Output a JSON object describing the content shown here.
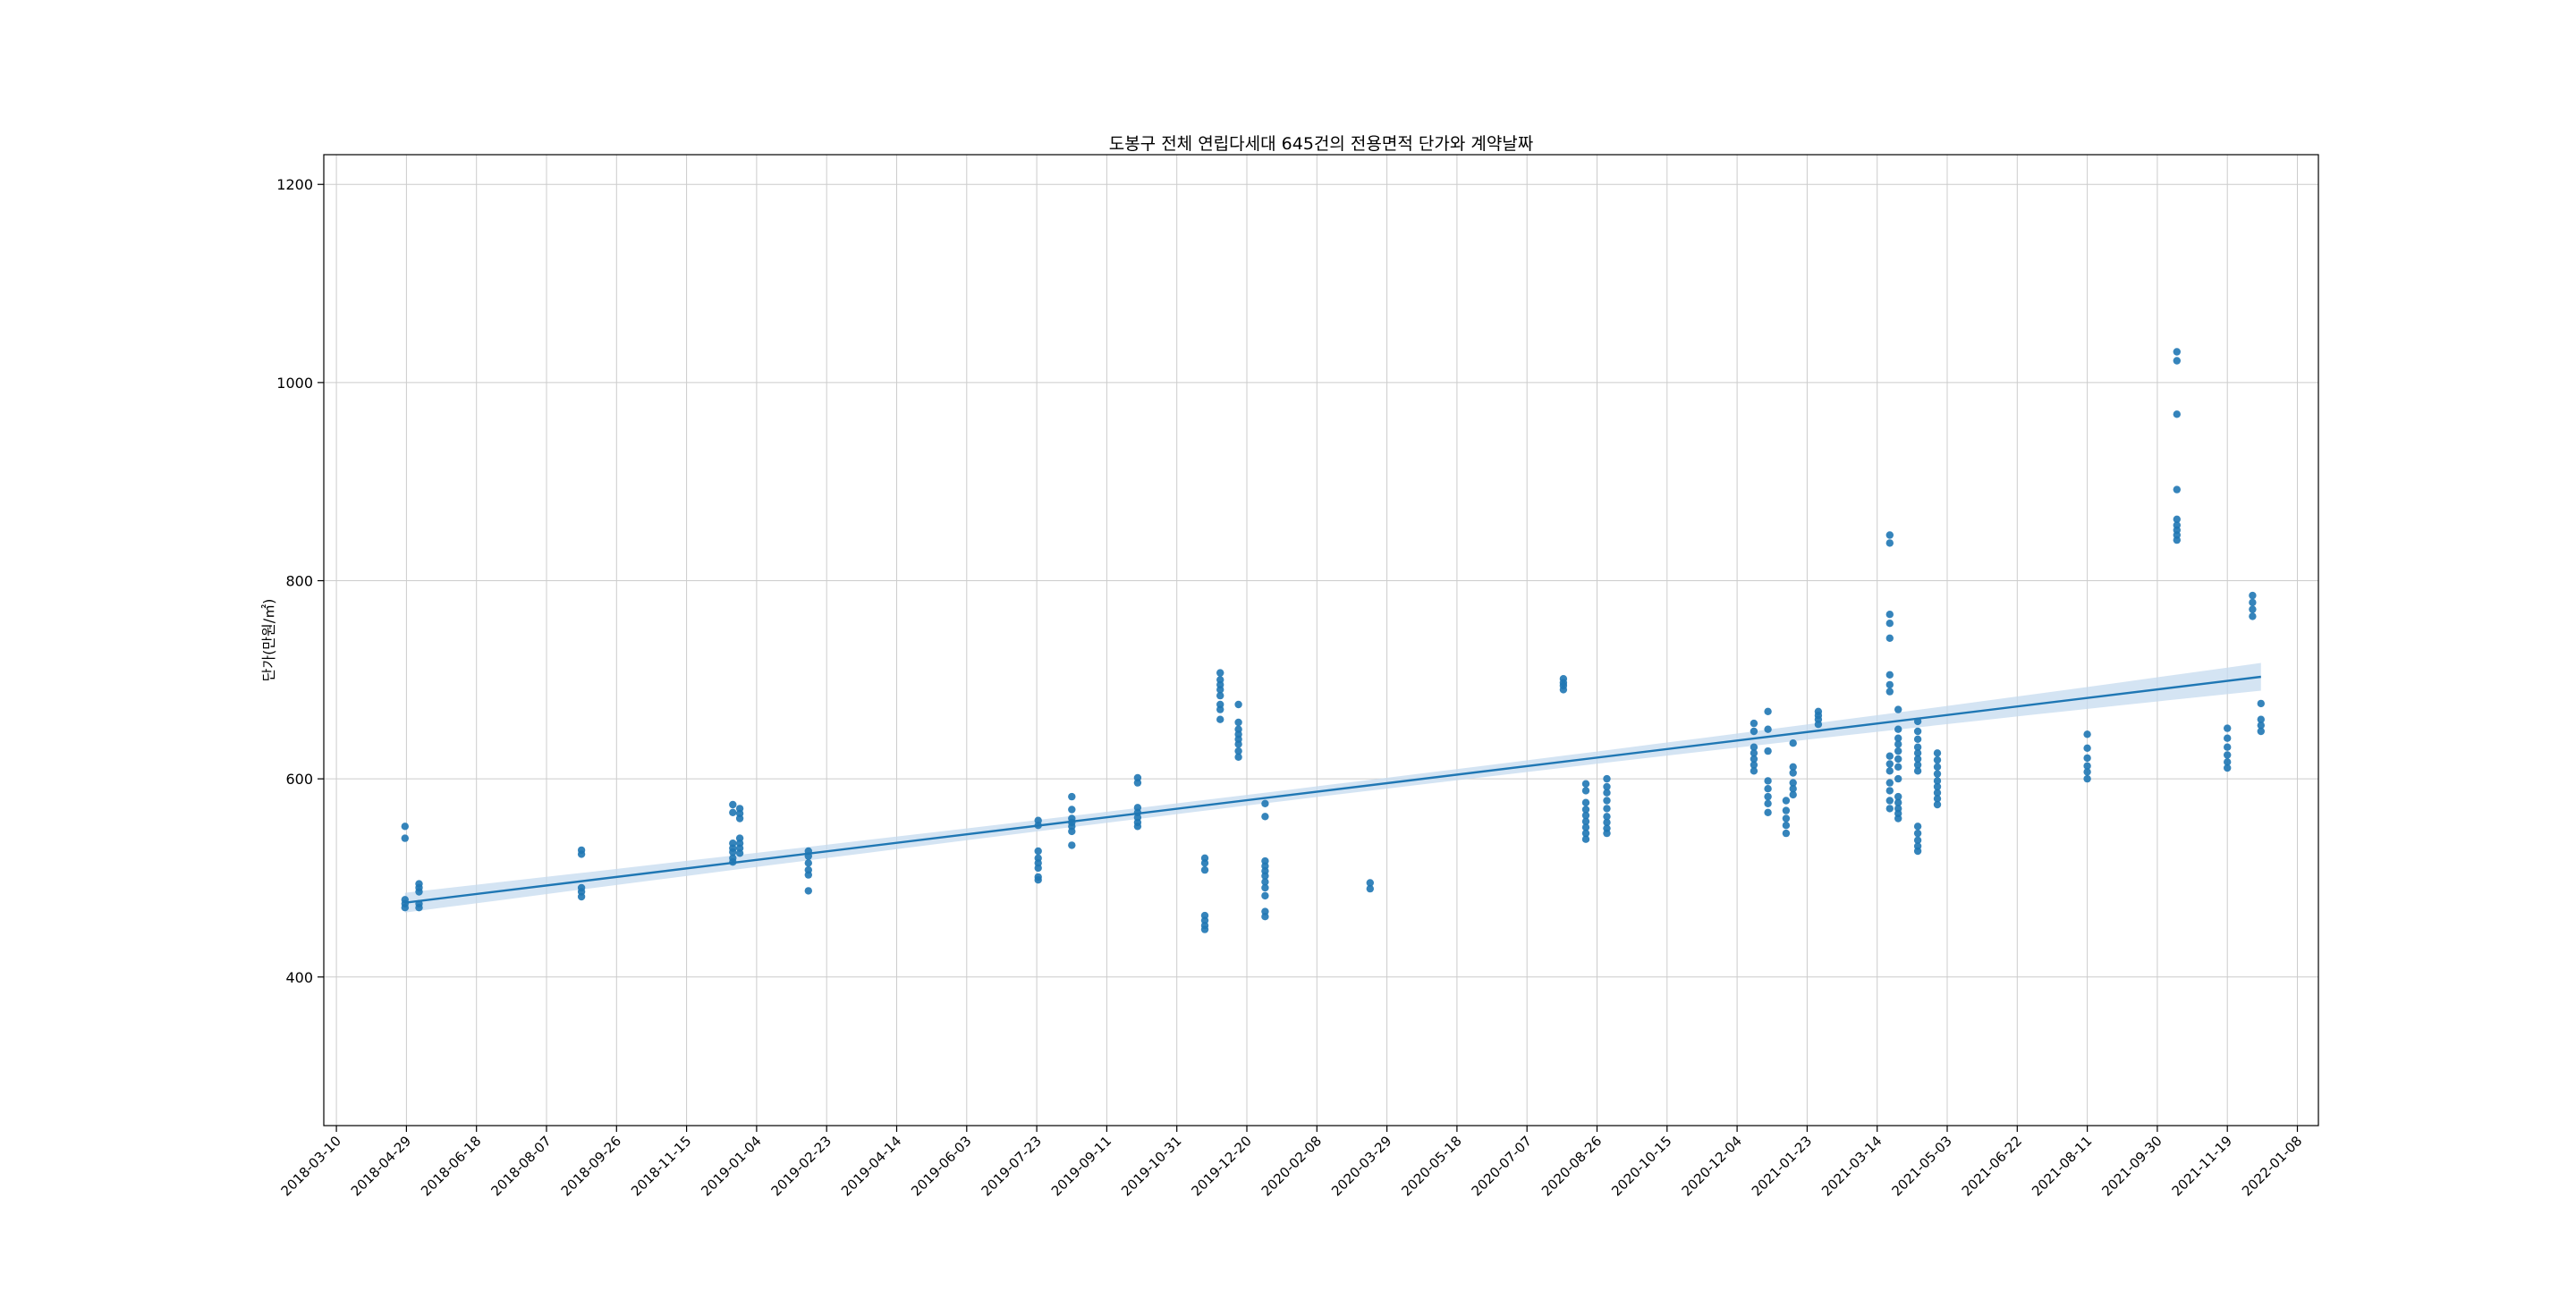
{
  "chart_data": {
    "type": "scatter",
    "title": "도봉구 전체 연립다세대 645건의 전용면적 단가와 계약날짜",
    "xlabel": "",
    "ylabel": "단가(만원/㎡)",
    "x_axis_type": "date",
    "xlim": [
      "2018-03-01",
      "2022-01-23"
    ],
    "ylim": [
      250,
      1230
    ],
    "x_ticks": [
      "2018-03-10",
      "2018-04-29",
      "2018-06-18",
      "2018-08-07",
      "2018-09-26",
      "2018-11-15",
      "2019-01-04",
      "2019-02-23",
      "2019-04-14",
      "2019-06-03",
      "2019-07-23",
      "2019-09-11",
      "2019-10-31",
      "2019-12-20",
      "2020-02-08",
      "2020-03-29",
      "2020-05-18",
      "2020-07-07",
      "2020-08-26",
      "2020-10-15",
      "2020-12-04",
      "2021-01-23",
      "2021-03-14",
      "2021-05-03",
      "2021-06-22",
      "2021-08-11",
      "2021-09-30",
      "2021-11-19",
      "2022-01-08"
    ],
    "y_ticks": [
      400,
      600,
      800,
      1000,
      1200
    ],
    "grid": true,
    "colors": {
      "points": "#1f77b4",
      "regression": "#1f77b4",
      "confidence_band": "#c6dbef",
      "grid": "#cccccc",
      "axes": "#000000"
    },
    "series": [
      {
        "points": [
          [
            "2018-04-28",
            552
          ],
          [
            "2018-04-28",
            540
          ],
          [
            "2018-04-28",
            478
          ],
          [
            "2018-04-28",
            474
          ],
          [
            "2018-04-28",
            470
          ],
          [
            "2018-05-08",
            494
          ],
          [
            "2018-05-08",
            490
          ],
          [
            "2018-05-08",
            486
          ],
          [
            "2018-05-08",
            474
          ],
          [
            "2018-05-08",
            470
          ],
          [
            "2018-09-01",
            528
          ],
          [
            "2018-09-01",
            524
          ],
          [
            "2018-09-01",
            490
          ],
          [
            "2018-09-01",
            486
          ],
          [
            "2018-09-01",
            481
          ],
          [
            "2018-12-18",
            574
          ],
          [
            "2018-12-18",
            566
          ],
          [
            "2018-12-18",
            535
          ],
          [
            "2018-12-18",
            530
          ],
          [
            "2018-12-18",
            526
          ],
          [
            "2018-12-18",
            520
          ],
          [
            "2018-12-18",
            516
          ],
          [
            "2018-12-23",
            570
          ],
          [
            "2018-12-23",
            565
          ],
          [
            "2018-12-23",
            560
          ],
          [
            "2018-12-23",
            540
          ],
          [
            "2018-12-23",
            535
          ],
          [
            "2018-12-23",
            530
          ],
          [
            "2018-12-23",
            525
          ],
          [
            "2019-02-10",
            527
          ],
          [
            "2019-02-10",
            522
          ],
          [
            "2019-02-10",
            515
          ],
          [
            "2019-02-10",
            508
          ],
          [
            "2019-02-10",
            503
          ],
          [
            "2019-02-10",
            487
          ],
          [
            "2019-07-24",
            558
          ],
          [
            "2019-07-24",
            553
          ],
          [
            "2019-07-24",
            527
          ],
          [
            "2019-07-24",
            520
          ],
          [
            "2019-07-24",
            515
          ],
          [
            "2019-07-24",
            510
          ],
          [
            "2019-07-24",
            501
          ],
          [
            "2019-07-24",
            498
          ],
          [
            "2019-08-17",
            582
          ],
          [
            "2019-08-17",
            569
          ],
          [
            "2019-08-17",
            560
          ],
          [
            "2019-08-17",
            556
          ],
          [
            "2019-08-17",
            552
          ],
          [
            "2019-08-17",
            547
          ],
          [
            "2019-08-17",
            533
          ],
          [
            "2019-10-03",
            601
          ],
          [
            "2019-10-03",
            596
          ],
          [
            "2019-10-03",
            571
          ],
          [
            "2019-10-03",
            566
          ],
          [
            "2019-10-03",
            561
          ],
          [
            "2019-10-03",
            556
          ],
          [
            "2019-10-03",
            552
          ],
          [
            "2019-11-20",
            520
          ],
          [
            "2019-11-20",
            515
          ],
          [
            "2019-11-20",
            508
          ],
          [
            "2019-11-20",
            462
          ],
          [
            "2019-11-20",
            457
          ],
          [
            "2019-11-20",
            452
          ],
          [
            "2019-11-20",
            448
          ],
          [
            "2019-12-01",
            707
          ],
          [
            "2019-12-01",
            700
          ],
          [
            "2019-12-01",
            695
          ],
          [
            "2019-12-01",
            690
          ],
          [
            "2019-12-01",
            684
          ],
          [
            "2019-12-01",
            675
          ],
          [
            "2019-12-01",
            670
          ],
          [
            "2019-12-01",
            660
          ],
          [
            "2019-12-14",
            675
          ],
          [
            "2019-12-14",
            657
          ],
          [
            "2019-12-14",
            650
          ],
          [
            "2019-12-14",
            645
          ],
          [
            "2019-12-14",
            640
          ],
          [
            "2019-12-14",
            635
          ],
          [
            "2019-12-14",
            628
          ],
          [
            "2019-12-14",
            622
          ],
          [
            "2020-01-02",
            575
          ],
          [
            "2020-01-02",
            562
          ],
          [
            "2020-01-02",
            517
          ],
          [
            "2020-01-02",
            512
          ],
          [
            "2020-01-02",
            507
          ],
          [
            "2020-01-02",
            502
          ],
          [
            "2020-01-02",
            496
          ],
          [
            "2020-01-02",
            490
          ],
          [
            "2020-01-02",
            482
          ],
          [
            "2020-01-02",
            466
          ],
          [
            "2020-01-02",
            461
          ],
          [
            "2020-03-17",
            495
          ],
          [
            "2020-03-17",
            489
          ],
          [
            "2020-08-02",
            701
          ],
          [
            "2020-08-02",
            697
          ],
          [
            "2020-08-02",
            694
          ],
          [
            "2020-08-02",
            690
          ],
          [
            "2020-08-18",
            595
          ],
          [
            "2020-08-18",
            588
          ],
          [
            "2020-08-18",
            576
          ],
          [
            "2020-08-18",
            569
          ],
          [
            "2020-08-18",
            563
          ],
          [
            "2020-08-18",
            557
          ],
          [
            "2020-08-18",
            551
          ],
          [
            "2020-08-18",
            545
          ],
          [
            "2020-08-18",
            539
          ],
          [
            "2020-09-02",
            600
          ],
          [
            "2020-09-02",
            592
          ],
          [
            "2020-09-02",
            586
          ],
          [
            "2020-09-02",
            578
          ],
          [
            "2020-09-02",
            570
          ],
          [
            "2020-09-02",
            562
          ],
          [
            "2020-09-02",
            556
          ],
          [
            "2020-09-02",
            550
          ],
          [
            "2020-09-02",
            545
          ],
          [
            "2020-12-16",
            656
          ],
          [
            "2020-12-16",
            648
          ],
          [
            "2020-12-16",
            632
          ],
          [
            "2020-12-16",
            626
          ],
          [
            "2020-12-16",
            620
          ],
          [
            "2020-12-16",
            614
          ],
          [
            "2020-12-16",
            608
          ],
          [
            "2020-12-26",
            668
          ],
          [
            "2020-12-26",
            650
          ],
          [
            "2020-12-26",
            628
          ],
          [
            "2020-12-26",
            598
          ],
          [
            "2020-12-26",
            590
          ],
          [
            "2020-12-26",
            582
          ],
          [
            "2020-12-26",
            575
          ],
          [
            "2020-12-26",
            566
          ],
          [
            "2021-01-08",
            578
          ],
          [
            "2021-01-08",
            568
          ],
          [
            "2021-01-08",
            560
          ],
          [
            "2021-01-08",
            553
          ],
          [
            "2021-01-08",
            545
          ],
          [
            "2021-01-13",
            636
          ],
          [
            "2021-01-13",
            612
          ],
          [
            "2021-01-13",
            606
          ],
          [
            "2021-01-13",
            596
          ],
          [
            "2021-01-13",
            590
          ],
          [
            "2021-01-13",
            584
          ],
          [
            "2021-01-31",
            668
          ],
          [
            "2021-01-31",
            664
          ],
          [
            "2021-01-31",
            660
          ],
          [
            "2021-01-31",
            655
          ],
          [
            "2021-03-23",
            846
          ],
          [
            "2021-03-23",
            838
          ],
          [
            "2021-03-23",
            766
          ],
          [
            "2021-03-23",
            757
          ],
          [
            "2021-03-23",
            742
          ],
          [
            "2021-03-23",
            705
          ],
          [
            "2021-03-23",
            695
          ],
          [
            "2021-03-23",
            688
          ],
          [
            "2021-03-23",
            623
          ],
          [
            "2021-03-23",
            615
          ],
          [
            "2021-03-23",
            608
          ],
          [
            "2021-03-23",
            596
          ],
          [
            "2021-03-23",
            588
          ],
          [
            "2021-03-23",
            578
          ],
          [
            "2021-03-23",
            570
          ],
          [
            "2021-03-29",
            670
          ],
          [
            "2021-03-29",
            650
          ],
          [
            "2021-03-29",
            641
          ],
          [
            "2021-03-29",
            635
          ],
          [
            "2021-03-29",
            628
          ],
          [
            "2021-03-29",
            620
          ],
          [
            "2021-03-29",
            612
          ],
          [
            "2021-03-29",
            600
          ],
          [
            "2021-03-29",
            582
          ],
          [
            "2021-03-29",
            576
          ],
          [
            "2021-03-29",
            570
          ],
          [
            "2021-03-29",
            565
          ],
          [
            "2021-03-29",
            560
          ],
          [
            "2021-04-12",
            658
          ],
          [
            "2021-04-12",
            648
          ],
          [
            "2021-04-12",
            640
          ],
          [
            "2021-04-12",
            632
          ],
          [
            "2021-04-12",
            626
          ],
          [
            "2021-04-12",
            620
          ],
          [
            "2021-04-12",
            614
          ],
          [
            "2021-04-12",
            608
          ],
          [
            "2021-04-12",
            552
          ],
          [
            "2021-04-12",
            545
          ],
          [
            "2021-04-12",
            538
          ],
          [
            "2021-04-12",
            532
          ],
          [
            "2021-04-12",
            527
          ],
          [
            "2021-04-26",
            626
          ],
          [
            "2021-04-26",
            619
          ],
          [
            "2021-04-26",
            612
          ],
          [
            "2021-04-26",
            605
          ],
          [
            "2021-04-26",
            598
          ],
          [
            "2021-04-26",
            592
          ],
          [
            "2021-04-26",
            586
          ],
          [
            "2021-04-26",
            580
          ],
          [
            "2021-04-26",
            574
          ],
          [
            "2021-08-11",
            645
          ],
          [
            "2021-08-11",
            631
          ],
          [
            "2021-08-11",
            621
          ],
          [
            "2021-08-11",
            613
          ],
          [
            "2021-08-11",
            607
          ],
          [
            "2021-08-11",
            600
          ],
          [
            "2021-10-14",
            1031
          ],
          [
            "2021-10-14",
            1022
          ],
          [
            "2021-10-14",
            968
          ],
          [
            "2021-10-14",
            892
          ],
          [
            "2021-10-14",
            862
          ],
          [
            "2021-10-14",
            856
          ],
          [
            "2021-10-14",
            851
          ],
          [
            "2021-10-14",
            846
          ],
          [
            "2021-10-14",
            841
          ],
          [
            "2021-11-19",
            651
          ],
          [
            "2021-11-19",
            641
          ],
          [
            "2021-11-19",
            632
          ],
          [
            "2021-11-19",
            624
          ],
          [
            "2021-11-19",
            617
          ],
          [
            "2021-11-19",
            611
          ],
          [
            "2021-12-07",
            785
          ],
          [
            "2021-12-07",
            778
          ],
          [
            "2021-12-07",
            771
          ],
          [
            "2021-12-07",
            764
          ],
          [
            "2021-12-13",
            676
          ],
          [
            "2021-12-13",
            660
          ],
          [
            "2021-12-13",
            654
          ],
          [
            "2021-12-13",
            648
          ]
        ]
      }
    ],
    "regression": {
      "x": [
        "2018-04-28",
        "2021-12-13"
      ],
      "y": [
        475,
        703
      ],
      "ci_halfwidth": [
        10,
        14
      ]
    }
  }
}
